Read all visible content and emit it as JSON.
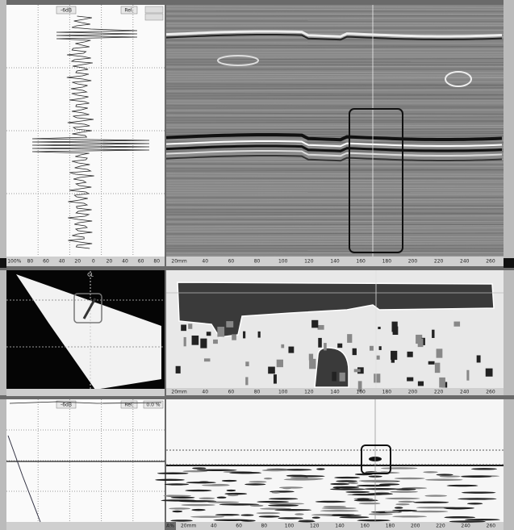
{
  "ascan_top": {
    "gain": "-6dB",
    "mode": "Rel.",
    "x_axis": [
      "100%",
      "80",
      "60",
      "40",
      "20",
      "0",
      "20",
      "40",
      "60",
      "80"
    ]
  },
  "bscan_top": {
    "x_axis": [
      "20mm",
      "40",
      "60",
      "80",
      "100",
      "120",
      "140",
      "160",
      "180",
      "200",
      "220",
      "240",
      "260"
    ]
  },
  "sector": {
    "label": "CL"
  },
  "cscan_mid": {
    "x_axis": [
      "20mm",
      "40",
      "60",
      "80",
      "100",
      "120",
      "140",
      "160",
      "180",
      "200",
      "220",
      "240",
      "260"
    ]
  },
  "ascan_bottom": {
    "gain": "-6dB",
    "mode": "Rel.",
    "percent": "0.0 %",
    "corner": "A%"
  },
  "bscan_bottom": {
    "x_axis": [
      "20mm",
      "40",
      "60",
      "80",
      "100",
      "120",
      "140",
      "160",
      "180",
      "200",
      "220",
      "240",
      "260"
    ]
  }
}
